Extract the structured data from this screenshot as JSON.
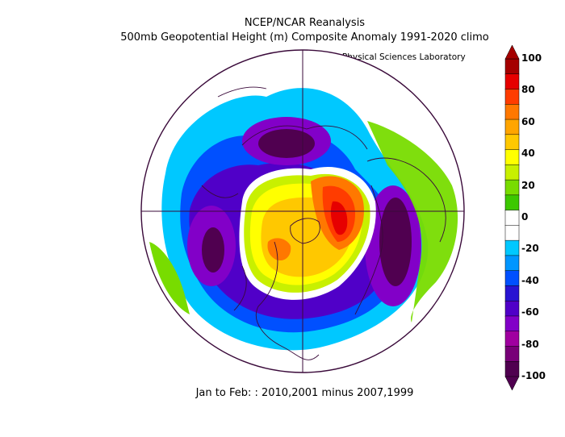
{
  "header": {
    "title": "NCEP/NCAR Reanalysis",
    "subtitle": "500mb Geopotential Height (m) Composite Anomaly 1991-2020 climo",
    "credit": "NOAA Physical Sciences Laboratory"
  },
  "footer": {
    "period": "Jan to Feb: : 2010,2001 minus 2007,1999"
  },
  "colorbar": {
    "labels": [
      "100",
      "80",
      "60",
      "40",
      "20",
      "0",
      "-20",
      "-40",
      "-60",
      "-80",
      "-100"
    ],
    "colors": [
      "#a50000",
      "#e60000",
      "#ff3c00",
      "#ff7800",
      "#ffa500",
      "#ffc800",
      "#ffff00",
      "#c8f000",
      "#78dc00",
      "#3cc800",
      "#ffffff",
      "#ffffff",
      "#00c8ff",
      "#0096ff",
      "#0050ff",
      "#2814d2",
      "#5000c8",
      "#8200c8",
      "#a000a0",
      "#780078",
      "#500050"
    ]
  }
}
